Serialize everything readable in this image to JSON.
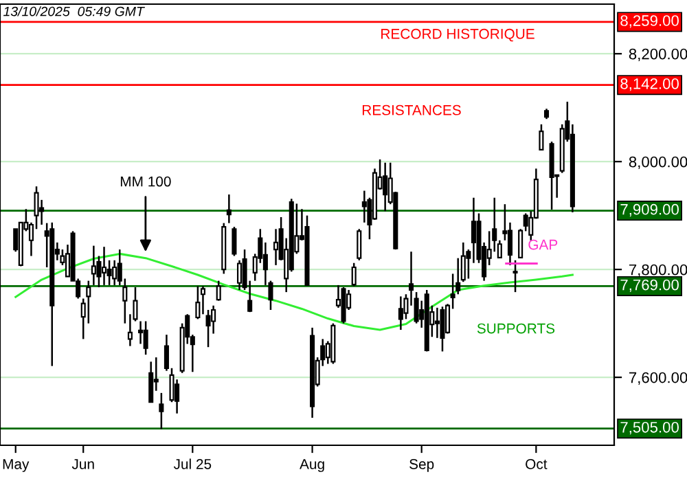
{
  "chart_data": {
    "type": "candlestick",
    "annotations": [
      "13/10/2025  05:49 GMT",
      "RECORD HISTORIQUE",
      "RESISTANCES",
      "SUPPORTS",
      "GAP"
    ],
    "categories": [
      "May",
      null,
      null,
      null,
      null,
      null,
      null,
      null,
      null,
      null,
      null,
      null,
      null,
      "Jun",
      null,
      null,
      null,
      null,
      null,
      null,
      null,
      null,
      null,
      null,
      null,
      null,
      null,
      null,
      null,
      null,
      null,
      null,
      null,
      null,
      "Jul 25",
      null,
      null,
      null,
      null,
      null,
      null,
      null,
      null,
      null,
      null,
      null,
      null,
      null,
      null,
      null,
      null,
      null,
      null,
      null,
      null,
      null,
      null,
      "Aug",
      null,
      null,
      null,
      null,
      null,
      null,
      null,
      null,
      null,
      null,
      null,
      null,
      null,
      null,
      null,
      null,
      null,
      null,
      null,
      null,
      "Sep",
      null,
      null,
      null,
      null,
      null,
      null,
      null,
      null,
      null,
      null,
      null,
      null,
      null,
      null,
      null,
      null,
      null,
      null,
      null,
      null,
      null,
      "Oct",
      null,
      null,
      null,
      null,
      null,
      null,
      null
    ],
    "ohlc": [
      [
        7875,
        7875,
        7833,
        7837
      ],
      [
        7808,
        7887,
        7806,
        7887
      ],
      [
        7875,
        7912,
        7871,
        7887
      ],
      [
        7854,
        7887,
        7825,
        7883
      ],
      [
        7900,
        7954,
        7875,
        7942
      ],
      [
        7914,
        7929,
        7883,
        7908
      ],
      [
        7871,
        7886,
        7804,
        7862
      ],
      [
        7875,
        7887,
        7621,
        7733
      ],
      [
        7837,
        7850,
        7817,
        7829
      ],
      [
        7813,
        7837,
        7808,
        7825
      ],
      [
        7787,
        7846,
        7787,
        7829
      ],
      [
        7867,
        7871,
        7779,
        7779
      ],
      [
        7778,
        7783,
        7746,
        7750
      ],
      [
        7712,
        7746,
        7671,
        7737
      ],
      [
        7750,
        7779,
        7700,
        7767
      ],
      [
        7792,
        7844,
        7771,
        7806
      ],
      [
        7814,
        7825,
        7767,
        7787
      ],
      [
        7794,
        7842,
        7771,
        7804
      ],
      [
        7800,
        7817,
        7771,
        7789
      ],
      [
        7783,
        7817,
        7771,
        7804
      ],
      [
        7811,
        7837,
        7771,
        7779
      ],
      [
        7742,
        7783,
        7700,
        7767
      ],
      [
        7671,
        7717,
        7658,
        7683
      ],
      [
        7708,
        7767,
        7704,
        7742
      ],
      [
        7687,
        7704,
        7662,
        7683
      ],
      [
        7687,
        7704,
        7642,
        7654
      ],
      [
        7608,
        7629,
        7554,
        7554
      ],
      [
        7596,
        7637,
        7575,
        7592
      ],
      [
        7550,
        7571,
        7504,
        7537
      ],
      [
        7658,
        7679,
        7612,
        7617
      ],
      [
        7558,
        7617,
        7554,
        7604
      ],
      [
        7587,
        7596,
        7533,
        7556
      ],
      [
        7612,
        7700,
        7608,
        7692
      ],
      [
        7714,
        7717,
        7662,
        7675
      ],
      [
        7675,
        7679,
        7610,
        7661
      ],
      [
        7711,
        7769,
        7708,
        7739
      ],
      [
        7754,
        7769,
        7717,
        7764
      ],
      [
        7714,
        7725,
        7656,
        7696
      ],
      [
        7704,
        7733,
        7681,
        7725
      ],
      [
        7744,
        7779,
        7742,
        7769
      ],
      [
        7800,
        7886,
        7792,
        7879
      ],
      [
        7910,
        7939,
        7886,
        7902
      ],
      [
        7875,
        7879,
        7825,
        7829
      ],
      [
        7775,
        7817,
        7762,
        7811
      ],
      [
        7819,
        7837,
        7762,
        7767
      ],
      [
        7742,
        7779,
        7721,
        7723
      ],
      [
        7794,
        7829,
        7779,
        7823
      ],
      [
        7858,
        7875,
        7812,
        7821
      ],
      [
        7827,
        7850,
        7771,
        7800
      ],
      [
        7775,
        7779,
        7725,
        7744
      ],
      [
        7837,
        7875,
        7808,
        7850
      ],
      [
        7875,
        7897,
        7817,
        7819
      ],
      [
        7783,
        7858,
        7758,
        7837
      ],
      [
        7925,
        7931,
        7796,
        7800
      ],
      [
        7833,
        7922,
        7829,
        7862
      ],
      [
        7862,
        7912,
        7854,
        7856
      ],
      [
        7879,
        7900,
        7771,
        7771
      ],
      [
        7677,
        7692,
        7525,
        7546
      ],
      [
        7587,
        7637,
        7583,
        7631
      ],
      [
        7658,
        7671,
        7621,
        7633
      ],
      [
        7637,
        7667,
        7625,
        7662
      ],
      [
        7629,
        7700,
        7625,
        7696
      ],
      [
        7733,
        7771,
        7729,
        7744
      ],
      [
        7764,
        7767,
        7700,
        7704
      ],
      [
        7729,
        7762,
        7725,
        7754
      ],
      [
        7772,
        7812,
        7769,
        7804
      ],
      [
        7821,
        7875,
        7817,
        7871
      ],
      [
        7925,
        7946,
        7887,
        7917
      ],
      [
        7929,
        7933,
        7856,
        7883
      ],
      [
        7894,
        7987,
        7892,
        7979
      ],
      [
        7950,
        8004,
        7948,
        7971
      ],
      [
        7973,
        7998,
        7908,
        7939
      ],
      [
        7925,
        7998,
        7921,
        7969
      ],
      [
        7942,
        7944,
        7837,
        7839
      ],
      [
        7727,
        7750,
        7688,
        7708
      ],
      [
        7719,
        7754,
        7708,
        7746
      ],
      [
        7773,
        7833,
        7733,
        7762
      ],
      [
        7746,
        7758,
        7700,
        7704
      ],
      [
        7725,
        7742,
        7692,
        7708
      ],
      [
        7754,
        7762,
        7648,
        7650
      ],
      [
        7698,
        7733,
        7675,
        7721
      ],
      [
        7704,
        7729,
        7673,
        7700
      ],
      [
        7725,
        7731,
        7648,
        7673
      ],
      [
        7683,
        7736,
        7681,
        7733
      ],
      [
        7754,
        7792,
        7727,
        7748
      ],
      [
        7775,
        7821,
        7754,
        7761
      ],
      [
        7781,
        7850,
        7777,
        7825
      ],
      [
        7833,
        7837,
        7783,
        7821
      ],
      [
        7889,
        7933,
        7812,
        7850
      ],
      [
        7889,
        7904,
        7812,
        7819
      ],
      [
        7842,
        7850,
        7779,
        7787
      ],
      [
        7821,
        7871,
        7808,
        7837
      ],
      [
        7875,
        7933,
        7833,
        7854
      ],
      [
        7822,
        7854,
        7821,
        7847
      ],
      [
        7871,
        7921,
        7854,
        7867
      ],
      [
        7872,
        7887,
        7808,
        7827
      ],
      [
        7796,
        7817,
        7758,
        7794
      ],
      [
        7822,
        7875,
        7821,
        7872
      ],
      [
        7900,
        7904,
        7871,
        7881
      ],
      [
        7864,
        7908,
        7854,
        7896
      ],
      [
        7896,
        7987,
        7894,
        7967
      ],
      [
        8022,
        8069,
        8021,
        8056
      ],
      [
        8094,
        8098,
        8079,
        8083
      ],
      [
        8033,
        8037,
        7911,
        7971
      ],
      [
        7973,
        7975,
        7933,
        7975
      ],
      [
        7983,
        8069,
        7979,
        8061
      ],
      [
        8075,
        8111,
        8037,
        8042
      ],
      [
        8050,
        8069,
        7906,
        7917
      ]
    ],
    "series": [
      {
        "type": "line",
        "name": "MM 100",
        "color": "#33ee33",
        "values": [
          7749,
          null,
          null,
          null,
          null,
          7781,
          null,
          null,
          null,
          null,
          7802,
          null,
          null,
          null,
          null,
          7820,
          null,
          null,
          null,
          null,
          7829,
          null,
          null,
          null,
          null,
          7821,
          null,
          null,
          null,
          null,
          7806,
          null,
          null,
          null,
          null,
          7790,
          null,
          null,
          null,
          null,
          7772,
          null,
          null,
          null,
          null,
          7755,
          null,
          null,
          null,
          null,
          7742,
          null,
          null,
          null,
          null,
          7727,
          null,
          null,
          null,
          null,
          7709,
          null,
          null,
          null,
          null,
          7695,
          null,
          null,
          null,
          null,
          7688,
          null,
          null,
          null,
          null,
          7699,
          null,
          null,
          null,
          null,
          7731,
          null,
          null,
          null,
          null,
          7762,
          null,
          null,
          null,
          null,
          7770,
          null,
          null,
          null,
          null,
          7776,
          null,
          null,
          null,
          null,
          7781,
          null,
          null,
          null,
          null,
          7787,
          null,
          7790
        ]
      }
    ],
    "ylim": [
      7474,
      8292
    ],
    "yticks": [
      {
        "value": 7600,
        "label": "7,600.00"
      },
      {
        "value": 7800,
        "label": "7,800.00"
      },
      {
        "value": 8000,
        "label": "8,000.00"
      },
      {
        "value": 8200,
        "label": "8,200.00"
      }
    ],
    "ref_lines": [
      {
        "axis": "y",
        "value": 8259,
        "label": "8,259.00",
        "color": "#ff0000"
      },
      {
        "axis": "y",
        "value": 8142,
        "label": "8,142.00",
        "color": "#ff0000"
      },
      {
        "axis": "y",
        "value": 7909,
        "label": "7,909.00",
        "color": "#006a00"
      },
      {
        "axis": "y",
        "value": 7769,
        "label": "7,769.00",
        "color": "#006a00"
      },
      {
        "axis": "y",
        "value": 7505,
        "label": "7,505.00",
        "color": "#006a00"
      }
    ],
    "grid": "y",
    "legend": false
  }
}
